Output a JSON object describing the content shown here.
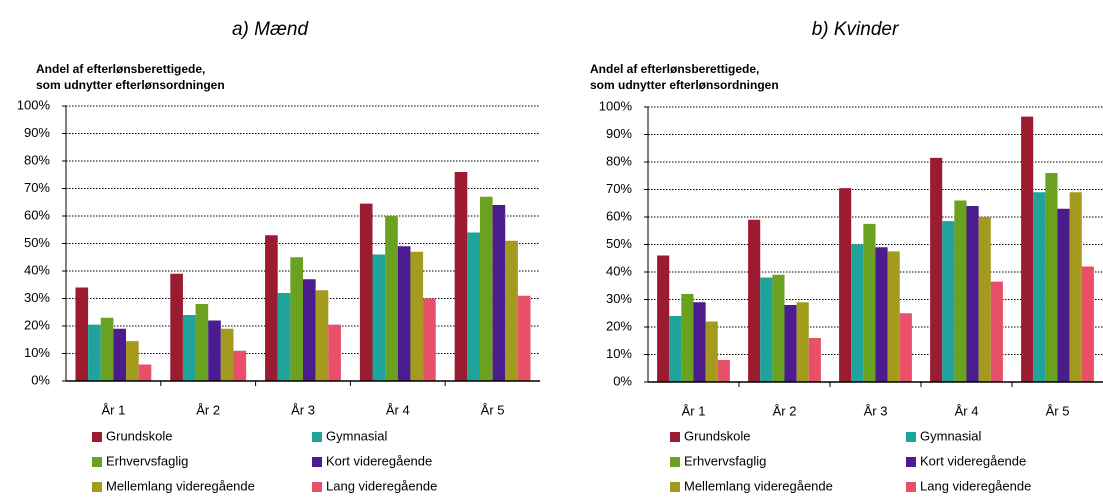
{
  "chart_data": [
    {
      "type": "bar",
      "title": "a) Mænd",
      "ylabel": [
        "Andel af efterlønsberettigede,",
        "som udnytter efterlønsordningen"
      ],
      "categories": [
        "År 1",
        "År 2",
        "År 3",
        "År 4",
        "År 5"
      ],
      "series": [
        {
          "name": "Grundskole",
          "color": "#9b1b30",
          "values": [
            34,
            39,
            53,
            64.5,
            76
          ]
        },
        {
          "name": "Gymnasial",
          "color": "#1fa39b",
          "values": [
            20.5,
            24,
            32,
            46,
            54
          ]
        },
        {
          "name": "Erhvervsfaglig",
          "color": "#6aa121",
          "values": [
            23,
            28,
            45,
            60,
            67
          ]
        },
        {
          "name": "Kort videregående",
          "color": "#4b1c8e",
          "values": [
            19,
            22,
            37,
            49,
            64
          ]
        },
        {
          "name": "Mellemlang videregående",
          "color": "#a39a1e",
          "values": [
            14.5,
            19,
            33,
            47,
            51
          ]
        },
        {
          "name": "Lang videregående",
          "color": "#e8506a",
          "values": [
            6,
            11,
            20.5,
            30,
            31
          ]
        }
      ],
      "ylim": [
        0,
        100
      ],
      "yticks": [
        {
          "value": 0,
          "label": "0%"
        },
        {
          "value": 10,
          "label": "10%"
        },
        {
          "value": 20,
          "label": "20%"
        },
        {
          "value": 30,
          "label": "30%"
        },
        {
          "value": 40,
          "label": "40%"
        },
        {
          "value": 50,
          "label": "50%"
        },
        {
          "value": 60,
          "label": "60%"
        },
        {
          "value": 70,
          "label": "70%"
        },
        {
          "value": 80,
          "label": "80%"
        },
        {
          "value": 90,
          "label": "90%"
        },
        {
          "value": 100,
          "label": "100%"
        }
      ],
      "grid": true
    },
    {
      "type": "bar",
      "title": "b) Kvinder",
      "ylabel": [
        "Andel af efterlønsberettigede,",
        "som udnytter efterlønsordningen"
      ],
      "categories": [
        "År 1",
        "År 2",
        "År 3",
        "År 4",
        "År 5"
      ],
      "series": [
        {
          "name": "Grundskole",
          "color": "#9b1b30",
          "values": [
            46,
            59,
            70.5,
            81.5,
            96.5
          ]
        },
        {
          "name": "Gymnasial",
          "color": "#1fa39b",
          "values": [
            24,
            38,
            50,
            58.5,
            69
          ]
        },
        {
          "name": "Erhvervsfaglig",
          "color": "#6aa121",
          "values": [
            32,
            39,
            57.5,
            66,
            76
          ]
        },
        {
          "name": "Kort videregående",
          "color": "#4b1c8e",
          "values": [
            29,
            28,
            49,
            64,
            63
          ]
        },
        {
          "name": "Mellemlang videregående",
          "color": "#a39a1e",
          "values": [
            22,
            29,
            47.5,
            60,
            69
          ]
        },
        {
          "name": "Lang videregående",
          "color": "#e8506a",
          "values": [
            8,
            16,
            25,
            36.5,
            42
          ]
        }
      ],
      "ylim": [
        0,
        100
      ],
      "yticks": [
        {
          "value": 0,
          "label": "0%"
        },
        {
          "value": 10,
          "label": "10%"
        },
        {
          "value": 20,
          "label": "20%"
        },
        {
          "value": 30,
          "label": "30%"
        },
        {
          "value": 40,
          "label": "40%"
        },
        {
          "value": 50,
          "label": "50%"
        },
        {
          "value": 60,
          "label": "60%"
        },
        {
          "value": 70,
          "label": "70%"
        },
        {
          "value": 80,
          "label": "80%"
        },
        {
          "value": 90,
          "label": "90%"
        },
        {
          "value": 100,
          "label": "100%"
        }
      ],
      "grid": true
    }
  ]
}
